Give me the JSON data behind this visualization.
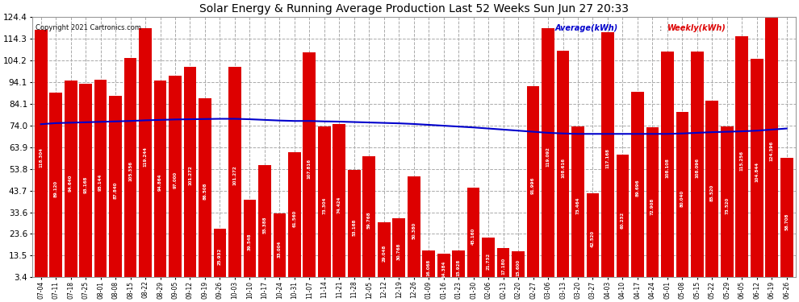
{
  "title": "Solar Energy & Running Average Production Last 52 Weeks Sun Jun 27 20:33",
  "copyright": "Copyright 2021 Cartronics.com",
  "legend_avg": "Average(kWh)",
  "legend_weekly": "Weekly(kWh)",
  "bar_color": "#dd0000",
  "avg_line_color": "#0000cc",
  "background_color": "#ffffff",
  "plot_bg_color": "#ffffff",
  "grid_color": "#aaaaaa",
  "ylim": [
    3.4,
    124.4
  ],
  "yticks": [
    3.4,
    13.5,
    23.6,
    33.6,
    43.7,
    53.8,
    63.9,
    74.0,
    84.1,
    94.1,
    104.2,
    114.3,
    124.4
  ],
  "categories": [
    "07-04",
    "07-11",
    "07-18",
    "07-25",
    "08-01",
    "08-08",
    "08-15",
    "08-22",
    "08-29",
    "09-05",
    "09-12",
    "09-19",
    "09-26",
    "10-03",
    "10-10",
    "10-17",
    "10-24",
    "10-31",
    "11-07",
    "11-14",
    "11-21",
    "11-28",
    "12-05",
    "12-12",
    "12-19",
    "12-26",
    "01-09",
    "01-16",
    "01-23",
    "01-30",
    "02-06",
    "02-13",
    "02-20",
    "02-27",
    "03-06",
    "03-13",
    "03-20",
    "03-27",
    "04-03",
    "04-10",
    "04-17",
    "04-24",
    "05-01",
    "05-08",
    "05-15",
    "05-22",
    "05-29",
    "06-05",
    "06-12",
    "06-19",
    "06-26"
  ],
  "weekly_values": [
    118.304,
    89.12,
    94.64,
    93.168,
    95.144,
    87.84,
    105.356,
    119.244,
    94.864,
    97.0,
    101.272,
    86.508,
    25.932,
    101.272,
    39.548,
    55.388,
    33.004,
    61.56,
    107.816,
    73.304,
    74.424,
    53.168,
    59.768,
    29.048,
    30.768,
    50.38,
    16.068,
    14.384,
    15.928,
    45.16,
    21.732,
    17.18,
    15.6,
    91.996,
    119.092,
    108.616,
    73.464,
    42.52,
    117.168,
    60.232,
    89.696,
    72.908,
    108.108,
    80.04,
    108.096,
    85.52,
    73.52,
    115.256,
    104.844,
    124.396,
    58.708
  ],
  "avg_values": [
    74.5,
    75.0,
    75.2,
    75.4,
    75.6,
    75.8,
    76.0,
    76.3,
    76.5,
    76.7,
    76.8,
    76.9,
    77.0,
    77.0,
    76.8,
    76.5,
    76.2,
    76.0,
    76.0,
    75.8,
    75.7,
    75.5,
    75.3,
    75.1,
    74.9,
    74.6,
    74.2,
    73.8,
    73.4,
    73.0,
    72.5,
    72.0,
    71.5,
    71.0,
    70.5,
    70.2,
    70.0,
    70.0,
    70.0,
    70.0,
    70.0,
    70.0,
    70.0,
    70.2,
    70.5,
    70.8,
    71.0,
    71.2,
    71.5,
    72.0,
    72.5
  ]
}
